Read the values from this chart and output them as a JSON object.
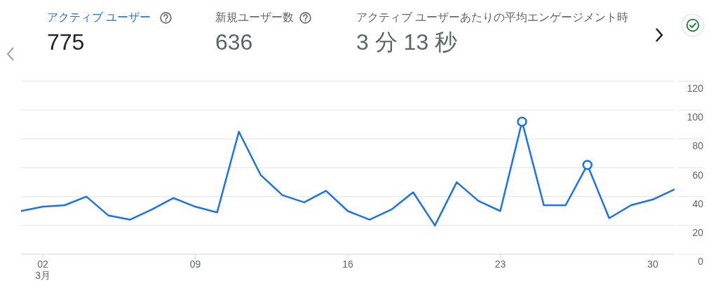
{
  "chart_data": [
    {
      "type": "other",
      "annotations": [
        "アクティブ ユーザー",
        "775",
        "新規ユーザー数",
        "636",
        "アクティブ ユーザーあたりの平均エンゲージメント時",
        "3 分 13 秒"
      ]
    },
    {
      "type": "line",
      "x": [
        "--03-01",
        "--03-02",
        "--03-03",
        "--03-04",
        "--03-05",
        "--03-06",
        "--03-07",
        "--03-08",
        "--03-09",
        "--03-10",
        "--03-11",
        "--03-12",
        "--03-13",
        "--03-14",
        "--03-15",
        "--03-16",
        "--03-17",
        "--03-18",
        "--03-19",
        "--03-20",
        "--03-21",
        "--03-22",
        "--03-23",
        "--03-24",
        "--03-25",
        "--03-26",
        "--03-27",
        "--03-28",
        "--03-29",
        "--03-30",
        "--03-31"
      ],
      "series": [
        {
          "color": "#1a73e8",
          "values": [
            30,
            33,
            34,
            40,
            27,
            24,
            31,
            39,
            33,
            29,
            85,
            55,
            41,
            36,
            44,
            30,
            24,
            31,
            43,
            20,
            50,
            37,
            30,
            92,
            34,
            34,
            62,
            25,
            34,
            38,
            45
          ]
        },
        {
          "type": "scatter",
          "marker": "circle",
          "color": "#1a73e8",
          "x": [
            "--03-24",
            "--03-27"
          ],
          "values": [
            92,
            62
          ]
        }
      ],
      "xlim": [
        "--03-01",
        "--03-31"
      ],
      "xticks": [
        {
          "value": "--03-02",
          "label": "02\n3月"
        },
        {
          "value": "--03-09",
          "label": "09"
        },
        {
          "value": "--03-16",
          "label": "16"
        },
        {
          "value": "--03-23",
          "label": "23"
        },
        {
          "value": "--03-30",
          "label": "30"
        }
      ],
      "ylim": [
        0,
        120
      ],
      "yticks": [
        0,
        20,
        40,
        60,
        80,
        100,
        120
      ],
      "grid": "y"
    }
  ]
}
